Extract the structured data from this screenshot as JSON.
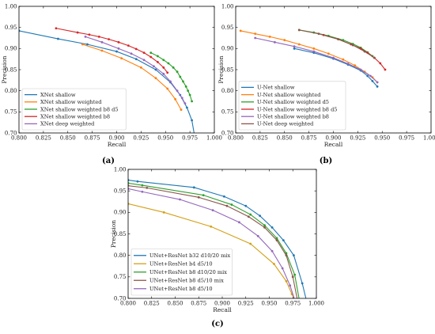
{
  "colors": {
    "blue": "#1f77b4",
    "orange": "#ff7f0e",
    "green": "#2ca02c",
    "red": "#d62728",
    "purple": "#9467bd",
    "brown": "#8c564b",
    "olive": "#bcbd22",
    "gray": "#7f7f7f",
    "mustard": "#d4a017"
  },
  "chart_data": [
    {
      "id": "a",
      "panel_label": "(a)",
      "type": "line",
      "xlabel": "Recall",
      "ylabel": "Precision",
      "xlim": [
        0.8,
        1.0
      ],
      "ylim": [
        0.7,
        1.0
      ],
      "xticks": [
        "0.800",
        "0.825",
        "0.850",
        "0.875",
        "0.900",
        "0.925",
        "0.950",
        "0.975",
        "1.000"
      ],
      "yticks": [
        "0.70",
        "0.75",
        "0.80",
        "0.85",
        "0.90",
        "0.95",
        "1.00"
      ],
      "legend_position": "lower-left",
      "series": [
        {
          "name": "XNet shallow",
          "color": "blue",
          "x": [
            0.8,
            0.84,
            0.87,
            0.9,
            0.92,
            0.94,
            0.955,
            0.965,
            0.972,
            0.977,
            0.98
          ],
          "y": [
            0.942,
            0.923,
            0.91,
            0.893,
            0.875,
            0.85,
            0.82,
            0.79,
            0.76,
            0.73,
            0.69
          ]
        },
        {
          "name": "XNet shallow weighted",
          "color": "orange",
          "x": [
            0.865,
            0.885,
            0.905,
            0.925,
            0.94,
            0.952,
            0.96,
            0.966
          ],
          "y": [
            0.91,
            0.895,
            0.877,
            0.855,
            0.83,
            0.805,
            0.78,
            0.755
          ]
        },
        {
          "name": "XNet shallow weighted b8 d5",
          "color": "green",
          "x": [
            0.935,
            0.942,
            0.948,
            0.953,
            0.958,
            0.962,
            0.965,
            0.968,
            0.971,
            0.973,
            0.975,
            0.977
          ],
          "y": [
            0.89,
            0.882,
            0.873,
            0.865,
            0.855,
            0.845,
            0.833,
            0.822,
            0.81,
            0.8,
            0.79,
            0.775
          ]
        },
        {
          "name": "XNet shallow weighted b8",
          "color": "red",
          "x": [
            0.838,
            0.86,
            0.872,
            0.882,
            0.892,
            0.902,
            0.912,
            0.92,
            0.928,
            0.935,
            0.942,
            0.948,
            0.952
          ],
          "y": [
            0.948,
            0.938,
            0.933,
            0.928,
            0.922,
            0.915,
            0.907,
            0.899,
            0.89,
            0.88,
            0.868,
            0.855,
            0.843
          ]
        },
        {
          "name": "XNet deep weighted",
          "color": "purple",
          "x": [
            0.868,
            0.885,
            0.902,
            0.915,
            0.928,
            0.938,
            0.948,
            0.955,
            0.962,
            0.967,
            0.97
          ],
          "y": [
            0.928,
            0.915,
            0.9,
            0.888,
            0.873,
            0.858,
            0.84,
            0.822,
            0.8,
            0.783,
            0.77
          ]
        }
      ]
    },
    {
      "id": "b",
      "panel_label": "(b)",
      "type": "line",
      "xlabel": "Recall",
      "ylabel": "Precision",
      "xlim": [
        0.8,
        1.0
      ],
      "ylim": [
        0.7,
        1.0
      ],
      "xticks": [
        "0.800",
        "0.825",
        "0.850",
        "0.875",
        "0.900",
        "0.925",
        "0.950",
        "0.975",
        "1.000"
      ],
      "yticks": [
        "0.70",
        "0.75",
        "0.80",
        "0.85",
        "0.90",
        "0.95",
        "1.00"
      ],
      "legend_position": "lower-left",
      "series": [
        {
          "name": "U-Net shallow",
          "color": "blue",
          "x": [
            0.86,
            0.88,
            0.9,
            0.915,
            0.928,
            0.935,
            0.94,
            0.945
          ],
          "y": [
            0.9,
            0.89,
            0.876,
            0.862,
            0.848,
            0.835,
            0.823,
            0.81
          ]
        },
        {
          "name": "U-Net shallow weighted",
          "color": "orange",
          "x": [
            0.805,
            0.82,
            0.835,
            0.85,
            0.865,
            0.88,
            0.895,
            0.91,
            0.922,
            0.932,
            0.94,
            0.945
          ],
          "y": [
            0.942,
            0.935,
            0.928,
            0.92,
            0.91,
            0.9,
            0.888,
            0.874,
            0.86,
            0.845,
            0.832,
            0.82
          ]
        },
        {
          "name": "U-Net shallow weighted d5",
          "color": "green",
          "x": [
            0.865,
            0.88,
            0.895,
            0.91,
            0.92,
            0.928,
            0.935,
            0.94
          ],
          "y": [
            0.944,
            0.938,
            0.93,
            0.92,
            0.911,
            0.902,
            0.891,
            0.882
          ]
        },
        {
          "name": "U-Net shallow weighted b8 d5",
          "color": "red",
          "x": [
            0.89,
            0.905,
            0.918,
            0.928,
            0.935,
            0.942,
            0.948,
            0.953
          ],
          "y": [
            0.932,
            0.922,
            0.91,
            0.9,
            0.89,
            0.878,
            0.865,
            0.85
          ]
        },
        {
          "name": "U-Net shallow weighted b8",
          "color": "purple",
          "x": [
            0.82,
            0.84,
            0.86,
            0.88,
            0.9,
            0.915,
            0.928,
            0.938,
            0.945
          ],
          "y": [
            0.925,
            0.915,
            0.905,
            0.893,
            0.878,
            0.864,
            0.85,
            0.835,
            0.82
          ]
        },
        {
          "name": "U-Net deep weighted",
          "color": "brown",
          "x": [
            0.865,
            0.885,
            0.905,
            0.92,
            0.932,
            0.942
          ],
          "y": [
            0.944,
            0.935,
            0.922,
            0.908,
            0.893,
            0.878
          ]
        }
      ]
    },
    {
      "id": "c",
      "panel_label": "(c)",
      "type": "line",
      "xlabel": "Recall",
      "ylabel": "Precision",
      "xlim": [
        0.8,
        1.0
      ],
      "ylim": [
        0.7,
        1.0
      ],
      "xticks": [
        "0.800",
        "0.825",
        "0.850",
        "0.875",
        "0.900",
        "0.925",
        "0.950",
        "0.975",
        "1.000"
      ],
      "yticks": [
        "0.70",
        "0.75",
        "0.80",
        "0.85",
        "0.90",
        "0.95",
        "1.00"
      ],
      "legend_position": "lower-left",
      "series": [
        {
          "name": "UNet+ResNet b32 d10/20 mix",
          "color": "blue",
          "x": [
            0.8,
            0.81,
            0.87,
            0.902,
            0.925,
            0.94,
            0.953,
            0.965,
            0.976,
            0.985,
            0.99
          ],
          "y": [
            0.975,
            0.972,
            0.958,
            0.937,
            0.915,
            0.892,
            0.865,
            0.835,
            0.8,
            0.735,
            0.69
          ]
        },
        {
          "name": "UNet+ResNet b4 d5/10",
          "color": "mustard",
          "x": [
            0.8,
            0.838,
            0.888,
            0.93,
            0.955,
            0.968,
            0.974,
            0.978
          ],
          "y": [
            0.92,
            0.9,
            0.867,
            0.827,
            0.78,
            0.74,
            0.71,
            0.69
          ]
        },
        {
          "name": "UNet+ResNet b8 d10/20 mix",
          "color": "green",
          "x": [
            0.8,
            0.815,
            0.88,
            0.91,
            0.93,
            0.945,
            0.958,
            0.968,
            0.977,
            0.982
          ],
          "y": [
            0.968,
            0.963,
            0.94,
            0.918,
            0.895,
            0.87,
            0.84,
            0.805,
            0.755,
            0.695
          ]
        },
        {
          "name": "UNet+ResNet b8 d5/10 mix",
          "color": "brown",
          "x": [
            0.8,
            0.82,
            0.875,
            0.905,
            0.928,
            0.945,
            0.958,
            0.968,
            0.975,
            0.98
          ],
          "y": [
            0.962,
            0.957,
            0.935,
            0.915,
            0.89,
            0.865,
            0.835,
            0.8,
            0.75,
            0.695
          ]
        },
        {
          "name": "UNet+ResNet b8 d5/10",
          "color": "purple",
          "x": [
            0.8,
            0.815,
            0.855,
            0.89,
            0.918,
            0.938,
            0.953,
            0.964,
            0.972,
            0.978
          ],
          "y": [
            0.955,
            0.948,
            0.93,
            0.905,
            0.877,
            0.845,
            0.81,
            0.77,
            0.73,
            0.69
          ]
        }
      ]
    }
  ]
}
